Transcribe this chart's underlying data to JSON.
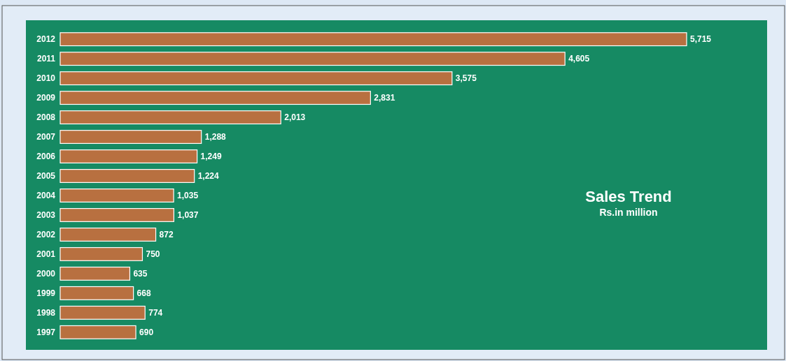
{
  "chart_data": {
    "type": "bar",
    "orientation": "horizontal",
    "title": "Sales Trend",
    "subtitle": "Rs.in million",
    "categories": [
      "2012",
      "2011",
      "2010",
      "2009",
      "2008",
      "2007",
      "2006",
      "2005",
      "2004",
      "2003",
      "2002",
      "2001",
      "2000",
      "1999",
      "1998",
      "1997"
    ],
    "values": [
      5715,
      4605,
      3575,
      2831,
      2013,
      1288,
      1249,
      1224,
      1035,
      1037,
      872,
      750,
      635,
      668,
      774,
      690
    ],
    "value_labels": [
      "5,715",
      "4,605",
      "3,575",
      "2,831",
      "2,013",
      "1,288",
      "1,249",
      "1,224",
      "1,035",
      "1,037",
      "872",
      "750",
      "635",
      "668",
      "774",
      "690"
    ],
    "color": "#b87040"
  }
}
